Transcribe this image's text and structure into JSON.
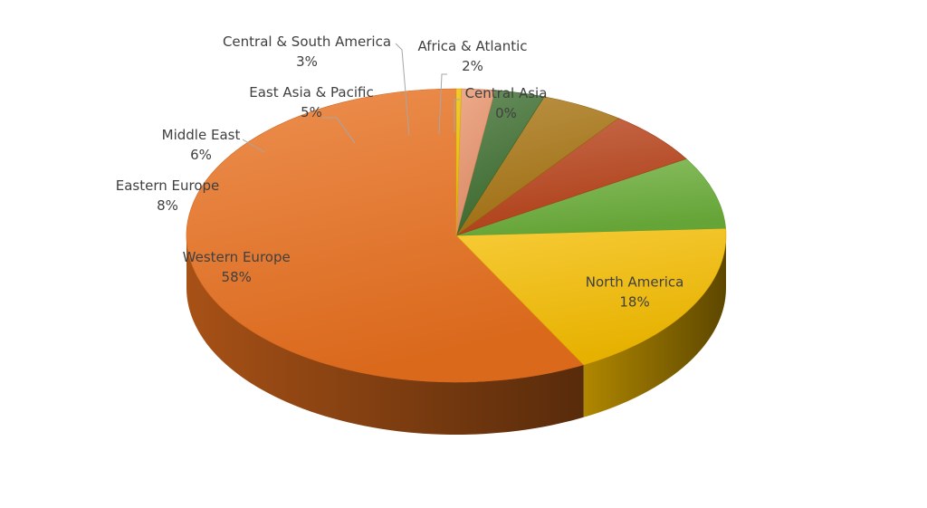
{
  "chart_data": {
    "type": "pie",
    "style": "3d",
    "categories": [
      "Western Europe",
      "North America",
      "Eastern Europe",
      "Middle East",
      "East Asia & Pacific",
      "Central & South America",
      "Africa & Atlantic",
      "Central Asia"
    ],
    "values": [
      58,
      18,
      8,
      6,
      5,
      3,
      2,
      0.3
    ],
    "value_labels": [
      "58%",
      "18%",
      "8%",
      "6%",
      "5%",
      "3%",
      "2%",
      "0%"
    ],
    "colors": [
      "#E8701E",
      "#F5BC00",
      "#6BAE3A",
      "#B8431A",
      "#A87412",
      "#3F6F30",
      "#E8936A",
      "#F0C000"
    ],
    "slice_labels_outside": [
      false,
      false,
      true,
      true,
      true,
      true,
      true,
      true
    ],
    "legend": "none",
    "title": ""
  }
}
